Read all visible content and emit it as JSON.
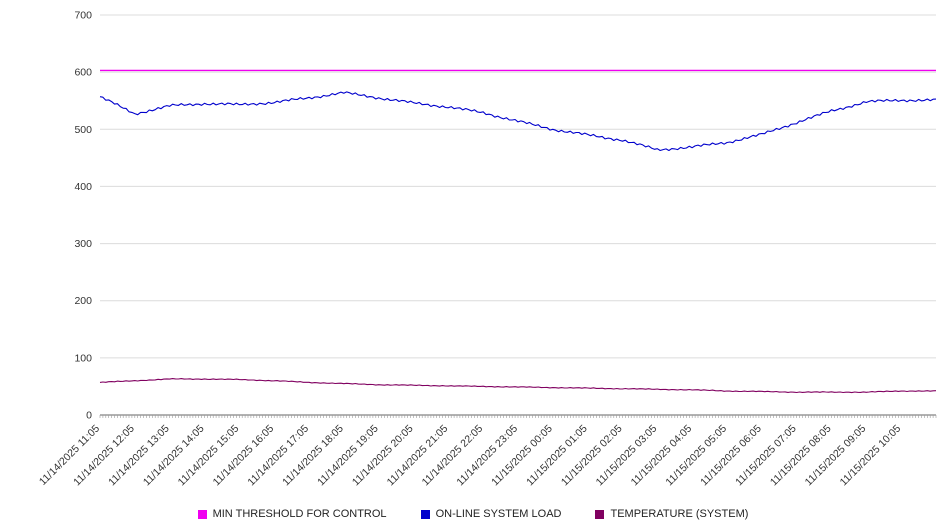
{
  "chart_data": {
    "type": "line",
    "categories": [
      "11/14/2025 11:05",
      "11/14/2025 12:05",
      "11/14/2025 13:05",
      "11/14/2025 14:05",
      "11/14/2025 15:05",
      "11/14/2025 16:05",
      "11/14/2025 17:05",
      "11/14/2025 18:05",
      "11/14/2025 19:05",
      "11/14/2025 20:05",
      "11/14/2025 21:05",
      "11/14/2025 22:05",
      "11/14/2025 23:05",
      "11/15/2025 00:05",
      "11/15/2025 01:05",
      "11/15/2025 02:05",
      "11/15/2025 03:05",
      "11/15/2025 04:05",
      "11/15/2025 05:05",
      "11/15/2025 06:05",
      "11/15/2025 07:05",
      "11/15/2025 08:05",
      "11/15/2025 09:05",
      "11/15/2025 10:05"
    ],
    "series": [
      {
        "name": "MIN THRESHOLD FOR CONTROL",
        "color": "#f000f0",
        "values": [
          603,
          603,
          603,
          603,
          603,
          603,
          603,
          603,
          603,
          603,
          603,
          603,
          603,
          603,
          603,
          603,
          603,
          603,
          603,
          603,
          603,
          603,
          603,
          603
        ]
      },
      {
        "name": "ON-LINE SYSTEM LOAD",
        "color": "#0000cc",
        "values": [
          557,
          527,
          541,
          545,
          543,
          547,
          555,
          564,
          555,
          546,
          539,
          529,
          514,
          500,
          490,
          481,
          464,
          469,
          477,
          491,
          512,
          532,
          548,
          551
        ]
      },
      {
        "name": "TEMPERATURE (SYSTEM)",
        "color": "#800060",
        "values": [
          57,
          60,
          63,
          63,
          62,
          60,
          57,
          55,
          53,
          52,
          51,
          50,
          49,
          48,
          47,
          46,
          45,
          44,
          42,
          41,
          40,
          40,
          40,
          42
        ]
      }
    ],
    "title": "",
    "xlabel": "",
    "ylabel": "",
    "ylim": [
      0,
      700
    ],
    "ytick_step": 100,
    "grid": true,
    "legend_position": "bottom",
    "grid_color": "#dcdcdc",
    "axis_color": "#666666",
    "tick_color": "#999999"
  }
}
